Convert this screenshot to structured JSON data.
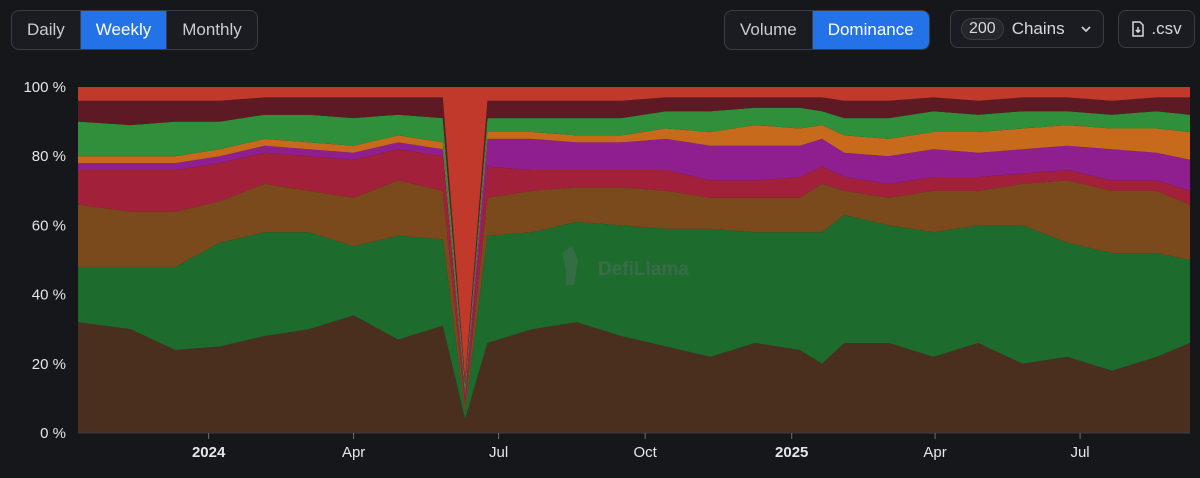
{
  "controls": {
    "period": [
      {
        "label": "Daily",
        "active": false
      },
      {
        "label": "Weekly",
        "active": true
      },
      {
        "label": "Monthly",
        "active": false
      }
    ],
    "mode": [
      {
        "label": "Volume",
        "active": false
      },
      {
        "label": "Dominance",
        "active": true
      }
    ],
    "chains_count": "200",
    "chains_label": "Chains",
    "csv_label": ".csv"
  },
  "watermark": "DefiLlama",
  "chart_data": {
    "type": "area",
    "stacked": true,
    "normalized": true,
    "grid": false,
    "legend": "none",
    "ylim": [
      0,
      100
    ],
    "y_ticks": [
      "0 %",
      "20 %",
      "40 %",
      "60 %",
      "80 %",
      "100 %"
    ],
    "x_range": [
      "2023-10-11",
      "2025-09-08"
    ],
    "x_ticks": [
      {
        "label": "2024",
        "date": "2024-01-01",
        "bold": true
      },
      {
        "label": "Apr",
        "date": "2024-04-01",
        "bold": false
      },
      {
        "label": "Jul",
        "date": "2024-07-01",
        "bold": false
      },
      {
        "label": "Oct",
        "date": "2024-10-01",
        "bold": false
      },
      {
        "label": "2025",
        "date": "2025-01-01",
        "bold": true
      },
      {
        "label": "Apr",
        "date": "2025-04-01",
        "bold": false
      },
      {
        "label": "Jul",
        "date": "2025-07-01",
        "bold": false
      }
    ],
    "x": [
      "2023-10-16",
      "2023-11-13",
      "2023-12-11",
      "2024-01-08",
      "2024-02-05",
      "2024-03-04",
      "2024-04-01",
      "2024-04-29",
      "2024-05-27",
      "2024-06-10",
      "2024-06-24",
      "2024-07-22",
      "2024-08-19",
      "2024-09-16",
      "2024-10-14",
      "2024-11-11",
      "2024-12-09",
      "2025-01-06",
      "2025-01-20",
      "2025-02-03",
      "2025-03-03",
      "2025-03-31",
      "2025-04-28",
      "2025-05-26",
      "2025-06-23",
      "2025-07-21",
      "2025-08-18",
      "2025-09-08"
    ],
    "series": [
      {
        "color": "#4a2e1e",
        "values": [
          32,
          30,
          24,
          25,
          28,
          30,
          34,
          27,
          31,
          4,
          26,
          30,
          32,
          28,
          25,
          22,
          26,
          24,
          20,
          26,
          26,
          22,
          26,
          20,
          22,
          18,
          22,
          26
        ]
      },
      {
        "color": "#1e6b2e",
        "values": [
          16,
          18,
          24,
          30,
          30,
          28,
          20,
          30,
          25,
          2,
          31,
          28,
          29,
          32,
          34,
          37,
          32,
          34,
          38,
          37,
          34,
          36,
          34,
          40,
          33,
          34,
          30,
          24
        ]
      },
      {
        "color": "#7a4a1c",
        "values": [
          18,
          16,
          16,
          12,
          14,
          12,
          14,
          16,
          14,
          2,
          11,
          12,
          10,
          11,
          11,
          9,
          10,
          10,
          14,
          7,
          8,
          12,
          10,
          12,
          18,
          18,
          18,
          16
        ]
      },
      {
        "color": "#a3203a",
        "values": [
          10,
          12,
          12,
          11,
          9,
          10,
          11,
          9,
          10,
          2,
          9,
          6,
          5,
          5,
          6,
          5,
          5,
          6,
          5,
          4,
          4,
          4,
          4,
          3,
          3,
          3,
          3,
          4
        ]
      },
      {
        "color": "#8f1f8f",
        "values": [
          2,
          2,
          2,
          2,
          2,
          2,
          2,
          2,
          2,
          1,
          8,
          9,
          8,
          8,
          9,
          10,
          10,
          9,
          8,
          7,
          8,
          8,
          7,
          7,
          7,
          9,
          8,
          9
        ]
      },
      {
        "color": "#c76a1c",
        "values": [
          2,
          2,
          2,
          2,
          2,
          2,
          2,
          2,
          2,
          1,
          2,
          2,
          2,
          2,
          3,
          4,
          6,
          5,
          4,
          5,
          5,
          5,
          6,
          6,
          6,
          6,
          7,
          8
        ]
      },
      {
        "color": "#2f8f3a",
        "values": [
          10,
          9,
          10,
          8,
          7,
          8,
          8,
          6,
          7,
          2,
          4,
          4,
          5,
          5,
          5,
          6,
          5,
          6,
          4,
          5,
          6,
          6,
          5,
          5,
          4,
          4,
          5,
          5
        ]
      },
      {
        "color": "#5e1a24",
        "values": [
          6,
          7,
          6,
          6,
          5,
          5,
          6,
          5,
          6,
          1,
          5,
          5,
          5,
          5,
          4,
          4,
          3,
          3,
          4,
          5,
          5,
          4,
          4,
          4,
          4,
          4,
          4,
          5
        ]
      },
      {
        "color": "#c0392b",
        "values": [
          4,
          4,
          4,
          4,
          3,
          3,
          3,
          3,
          3,
          85,
          4,
          4,
          4,
          4,
          3,
          3,
          3,
          3,
          3,
          4,
          4,
          3,
          4,
          3,
          3,
          4,
          3,
          3
        ]
      }
    ]
  }
}
